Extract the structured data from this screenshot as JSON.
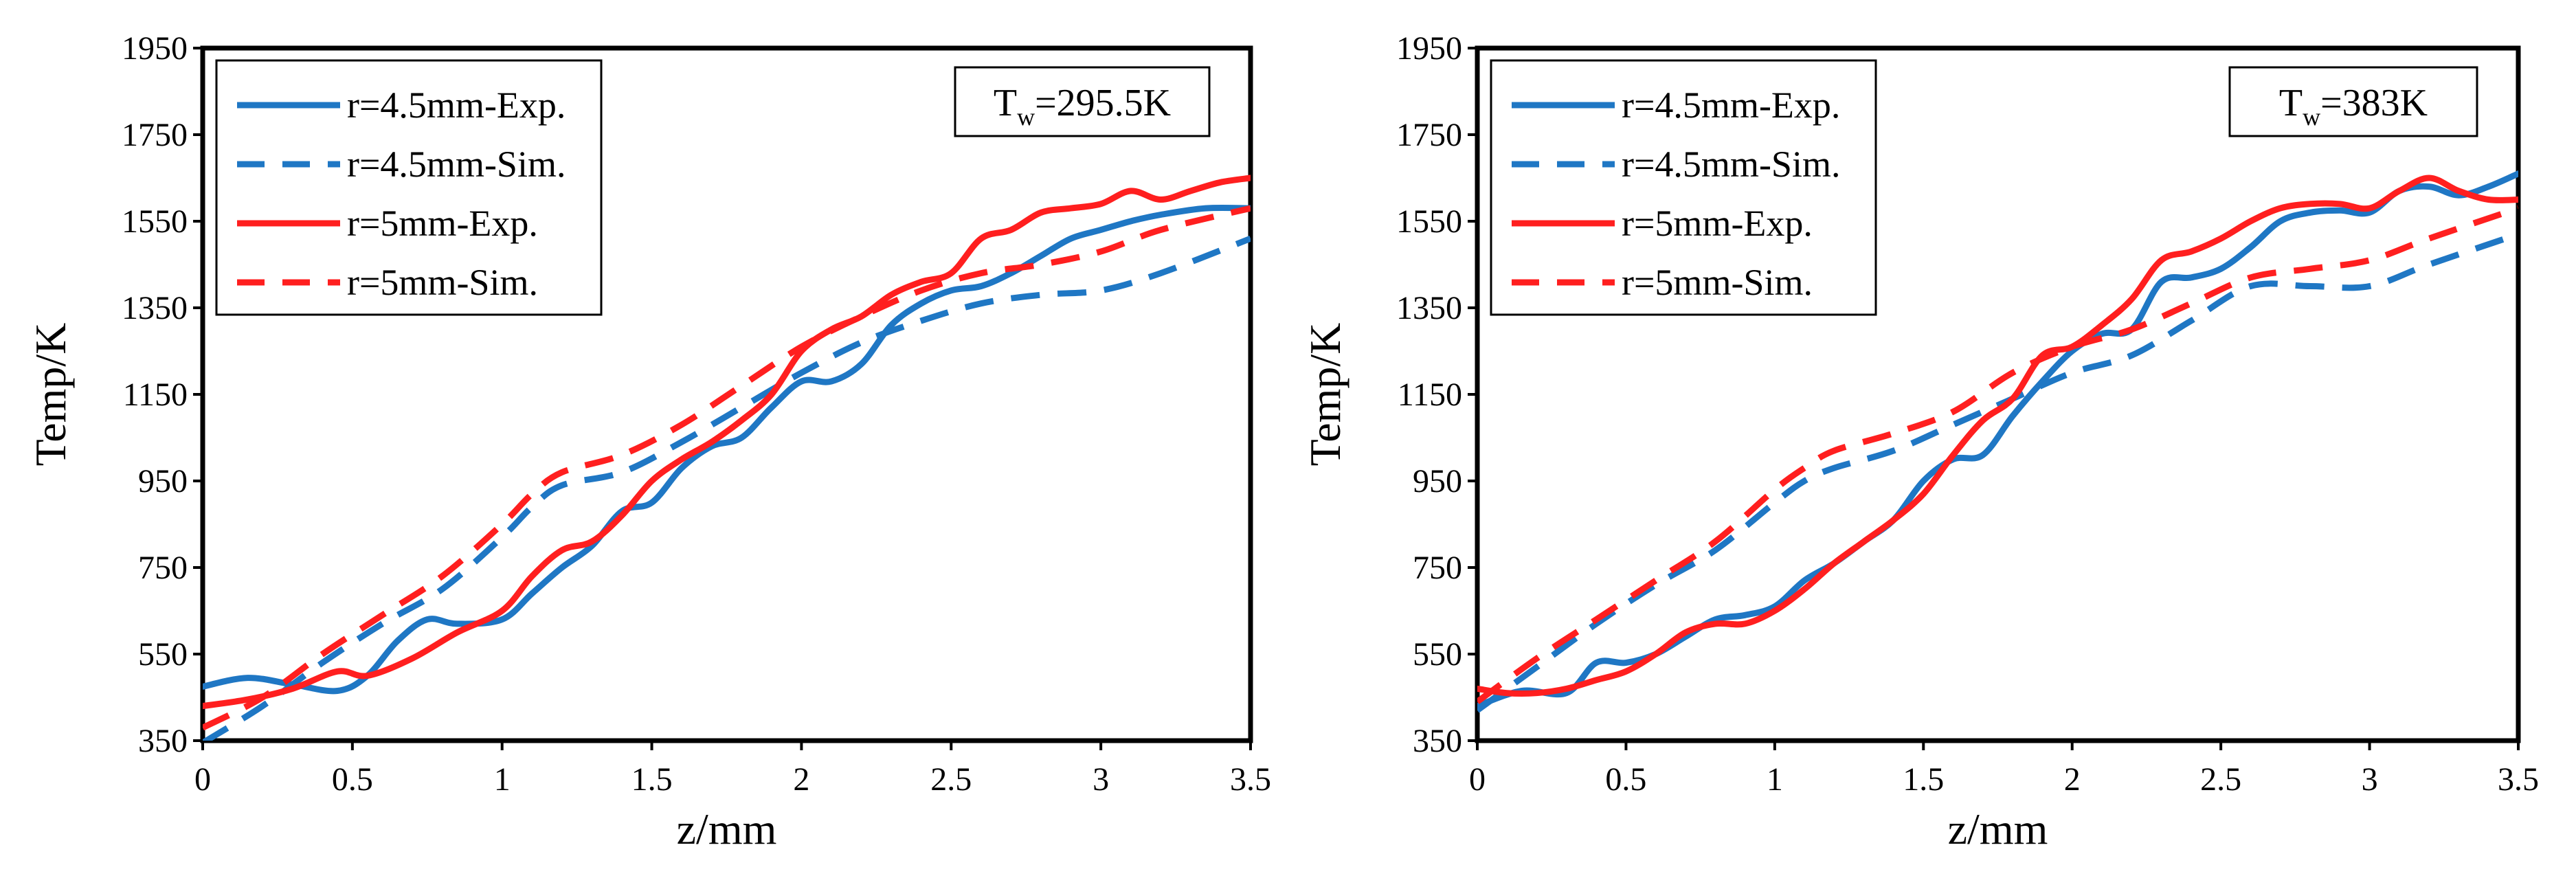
{
  "colors": {
    "blue": "#1f77c4",
    "red": "#ff1f1f"
  },
  "chart_data": [
    {
      "type": "line",
      "title": "",
      "annotation": {
        "main": "T",
        "sub": "w",
        "rest": "=295.5K"
      },
      "xlabel": "z/mm",
      "ylabel": "Temp/K",
      "xlim": [
        0,
        3.5
      ],
      "ylim": [
        350,
        1950
      ],
      "xticks": [
        0,
        0.5,
        1,
        1.5,
        2,
        2.5,
        3,
        3.5
      ],
      "xtick_labels": [
        "0",
        "0.5",
        "1",
        "1.5",
        "2",
        "2.5",
        "3",
        "3.5"
      ],
      "yticks": [
        350,
        550,
        750,
        950,
        1150,
        1350,
        1550,
        1750,
        1950
      ],
      "ytick_labels": [
        "350",
        "550",
        "750",
        "950",
        "1150",
        "1350",
        "1550",
        "1750",
        "1950"
      ],
      "legend_position": "top-left",
      "series": [
        {
          "name": "r=4.5mm-Exp.",
          "color": "blue",
          "dash": "solid",
          "x": [
            0,
            0.15,
            0.3,
            0.45,
            0.55,
            0.65,
            0.75,
            0.85,
            1.0,
            1.1,
            1.2,
            1.3,
            1.4,
            1.5,
            1.6,
            1.7,
            1.8,
            1.9,
            2.0,
            2.1,
            2.2,
            2.3,
            2.4,
            2.5,
            2.6,
            2.7,
            2.8,
            2.9,
            3.0,
            3.1,
            3.2,
            3.35,
            3.5
          ],
          "y": [
            475,
            495,
            480,
            465,
            500,
            580,
            630,
            620,
            630,
            690,
            750,
            800,
            880,
            900,
            980,
            1030,
            1050,
            1120,
            1180,
            1180,
            1220,
            1310,
            1360,
            1390,
            1400,
            1430,
            1470,
            1510,
            1530,
            1550,
            1565,
            1580,
            1580
          ]
        },
        {
          "name": "r=4.5mm-Sim.",
          "color": "blue",
          "dash": "dashed",
          "x": [
            0,
            0.2,
            0.4,
            0.6,
            0.8,
            1.0,
            1.1,
            1.2,
            1.4,
            1.6,
            1.8,
            2.0,
            2.2,
            2.4,
            2.6,
            2.8,
            3.0,
            3.2,
            3.5
          ],
          "y": [
            345,
            430,
            530,
            620,
            700,
            820,
            890,
            940,
            970,
            1040,
            1120,
            1200,
            1270,
            1320,
            1360,
            1380,
            1390,
            1430,
            1510
          ]
        },
        {
          "name": "r=5mm-Exp.",
          "color": "red",
          "dash": "solid",
          "x": [
            0,
            0.15,
            0.3,
            0.45,
            0.55,
            0.7,
            0.85,
            1.0,
            1.1,
            1.2,
            1.3,
            1.4,
            1.5,
            1.6,
            1.7,
            1.8,
            1.9,
            2.0,
            2.1,
            2.2,
            2.3,
            2.4,
            2.5,
            2.6,
            2.7,
            2.8,
            2.9,
            3.0,
            3.1,
            3.2,
            3.3,
            3.4,
            3.5
          ],
          "y": [
            430,
            445,
            470,
            510,
            500,
            540,
            600,
            650,
            730,
            790,
            810,
            870,
            950,
            1000,
            1040,
            1090,
            1150,
            1250,
            1300,
            1330,
            1380,
            1410,
            1430,
            1510,
            1530,
            1570,
            1580,
            1590,
            1620,
            1600,
            1620,
            1640,
            1650
          ]
        },
        {
          "name": "r=5mm-Sim.",
          "color": "red",
          "dash": "dashed",
          "x": [
            0,
            0.2,
            0.4,
            0.6,
            0.8,
            1.0,
            1.1,
            1.2,
            1.4,
            1.6,
            1.8,
            2.0,
            2.2,
            2.4,
            2.6,
            2.8,
            3.0,
            3.2,
            3.5
          ],
          "y": [
            380,
            450,
            550,
            640,
            730,
            850,
            920,
            970,
            1010,
            1080,
            1170,
            1260,
            1330,
            1390,
            1430,
            1450,
            1480,
            1530,
            1580
          ]
        }
      ]
    },
    {
      "type": "line",
      "title": "",
      "annotation": {
        "main": "T",
        "sub": "w",
        "rest": "=383K"
      },
      "xlabel": "z/mm",
      "ylabel": "Temp/K",
      "xlim": [
        0,
        3.5
      ],
      "ylim": [
        350,
        1950
      ],
      "xticks": [
        0,
        0.5,
        1,
        1.5,
        2,
        2.5,
        3,
        3.5
      ],
      "xtick_labels": [
        "0",
        "0.5",
        "1",
        "1.5",
        "2",
        "2.5",
        "3",
        "3.5"
      ],
      "yticks": [
        350,
        550,
        750,
        950,
        1150,
        1350,
        1550,
        1750,
        1950
      ],
      "ytick_labels": [
        "350",
        "550",
        "750",
        "950",
        "1150",
        "1350",
        "1550",
        "1750",
        "1950"
      ],
      "legend_position": "top-left",
      "series": [
        {
          "name": "r=4.5mm-Exp.",
          "color": "blue",
          "dash": "solid",
          "x": [
            0,
            0.15,
            0.3,
            0.4,
            0.5,
            0.6,
            0.7,
            0.8,
            0.9,
            1.0,
            1.1,
            1.2,
            1.3,
            1.4,
            1.5,
            1.6,
            1.7,
            1.8,
            1.9,
            2.0,
            2.1,
            2.2,
            2.3,
            2.4,
            2.5,
            2.6,
            2.7,
            2.8,
            2.9,
            3.0,
            3.1,
            3.2,
            3.3,
            3.4,
            3.5
          ],
          "y": [
            430,
            465,
            460,
            530,
            530,
            550,
            590,
            630,
            640,
            660,
            720,
            760,
            810,
            860,
            950,
            1000,
            1010,
            1100,
            1180,
            1250,
            1290,
            1300,
            1410,
            1420,
            1440,
            1490,
            1550,
            1570,
            1575,
            1570,
            1620,
            1630,
            1610,
            1630,
            1660
          ]
        },
        {
          "name": "r=4.5mm-Sim.",
          "color": "blue",
          "dash": "dashed",
          "x": [
            0,
            0.2,
            0.4,
            0.6,
            0.8,
            1.0,
            1.1,
            1.2,
            1.4,
            1.6,
            1.8,
            2.0,
            2.2,
            2.4,
            2.6,
            2.8,
            3.0,
            3.2,
            3.5
          ],
          "y": [
            420,
            520,
            620,
            710,
            790,
            900,
            950,
            980,
            1020,
            1080,
            1140,
            1200,
            1240,
            1320,
            1400,
            1400,
            1400,
            1450,
            1520
          ]
        },
        {
          "name": "r=5mm-Exp.",
          "color": "red",
          "dash": "solid",
          "x": [
            0,
            0.1,
            0.2,
            0.3,
            0.4,
            0.5,
            0.6,
            0.7,
            0.8,
            0.9,
            1.0,
            1.1,
            1.2,
            1.3,
            1.4,
            1.5,
            1.6,
            1.7,
            1.8,
            1.9,
            2.0,
            2.1,
            2.2,
            2.3,
            2.4,
            2.5,
            2.6,
            2.7,
            2.8,
            2.9,
            3.0,
            3.1,
            3.2,
            3.3,
            3.4,
            3.5
          ],
          "y": [
            470,
            460,
            460,
            470,
            490,
            510,
            550,
            600,
            620,
            620,
            650,
            700,
            760,
            810,
            860,
            920,
            1010,
            1090,
            1140,
            1240,
            1260,
            1310,
            1370,
            1460,
            1480,
            1510,
            1550,
            1580,
            1590,
            1590,
            1580,
            1620,
            1650,
            1620,
            1600,
            1600
          ]
        },
        {
          "name": "r=5mm-Sim.",
          "color": "red",
          "dash": "dashed",
          "x": [
            0,
            0.2,
            0.4,
            0.6,
            0.8,
            1.0,
            1.1,
            1.2,
            1.4,
            1.6,
            1.8,
            2.0,
            2.2,
            2.4,
            2.6,
            2.8,
            3.0,
            3.2,
            3.5
          ],
          "y": [
            440,
            540,
            630,
            720,
            810,
            930,
            980,
            1020,
            1060,
            1110,
            1200,
            1260,
            1300,
            1360,
            1420,
            1440,
            1460,
            1510,
            1580
          ]
        }
      ]
    }
  ]
}
